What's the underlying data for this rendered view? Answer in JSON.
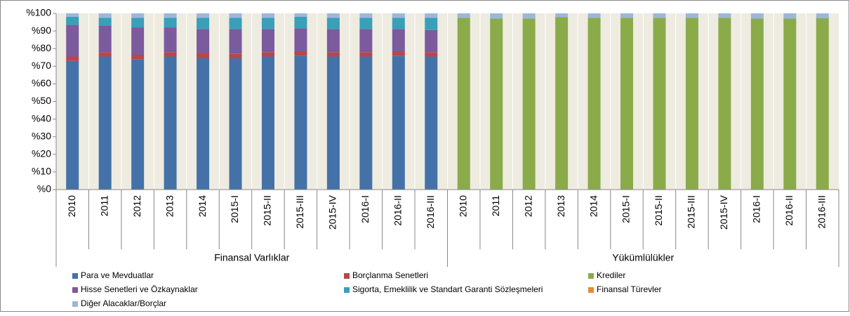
{
  "chart_data": {
    "type": "stacked_bar",
    "groups": [
      {
        "name": "Finansal Varlıklar",
        "categories": [
          "2010",
          "2011",
          "2012",
          "2013",
          "2014",
          "2015-I",
          "2015-II",
          "2015-III",
          "2015-IV",
          "2016-I",
          "2016-II",
          "2016-III"
        ]
      },
      {
        "name": "Yükümlülükler",
        "categories": [
          "2010",
          "2011",
          "2012",
          "2013",
          "2014",
          "2015-I",
          "2015-II",
          "2015-III",
          "2015-IV",
          "2016-I",
          "2016-II",
          "2016-III"
        ]
      }
    ],
    "series": [
      {
        "name": "Para ve Mevduatlar",
        "color": "#4472a8",
        "values": [
          73,
          75.5,
          74,
          75.5,
          74.5,
          74.5,
          75.5,
          76,
          75.5,
          75.5,
          76,
          75.5,
          0,
          0,
          0,
          0,
          0,
          0,
          0,
          0,
          0,
          0,
          0,
          0
        ]
      },
      {
        "name": "Borçlanma Senetleri",
        "color": "#b8474a",
        "values": [
          2.5,
          2.5,
          2.5,
          2.5,
          3,
          2.5,
          2.5,
          2.5,
          2.5,
          2.5,
          2.5,
          2.5,
          0,
          0,
          0,
          0,
          0,
          0,
          0,
          0,
          0,
          0,
          0,
          0
        ]
      },
      {
        "name": "Krediler",
        "color": "#8bab4a",
        "values": [
          0,
          0,
          0,
          0,
          0,
          0,
          0,
          0,
          0,
          0,
          0,
          0,
          97.5,
          97,
          97,
          97.8,
          97.5,
          97.5,
          97.5,
          97.5,
          97.5,
          97,
          97,
          97.2
        ]
      },
      {
        "name": "Hisse Senetleri ve Özkaynaklar",
        "color": "#7b5a9e",
        "values": [
          18,
          15,
          15.5,
          14,
          13.5,
          14,
          13,
          13,
          13,
          13,
          12.5,
          12.5,
          0,
          0,
          0,
          0,
          0,
          0,
          0,
          0,
          0,
          0,
          0,
          0
        ]
      },
      {
        "name": "Sigorta, Emeklilik ve Standart Garanti Sözleşmeleri",
        "color": "#3a9fb8",
        "values": [
          4.5,
          4.5,
          5.5,
          5.5,
          6.5,
          6.5,
          6.5,
          6.5,
          6.5,
          6.5,
          6.5,
          7,
          0,
          0,
          0,
          0,
          0,
          0,
          0,
          0,
          0,
          0,
          0,
          0
        ]
      },
      {
        "name": "Finansal Türevler",
        "color": "#e88a3a",
        "values": [
          0,
          0,
          0,
          0,
          0,
          0,
          0,
          0,
          0,
          0,
          0,
          0,
          0,
          0,
          0,
          0,
          0,
          0,
          0,
          0,
          0,
          0,
          0,
          0
        ]
      },
      {
        "name": "Diğer Alacaklar/Borçlar",
        "color": "#9db6dc",
        "values": [
          2,
          2.5,
          2.5,
          2.5,
          2.5,
          2.5,
          2.5,
          2,
          2.5,
          2.5,
          2.5,
          2.5,
          2.5,
          3,
          3,
          2.2,
          2.5,
          2.5,
          2.5,
          2.5,
          2.5,
          3,
          3,
          2.8
        ]
      }
    ],
    "ylim": [
      0,
      100
    ],
    "yticks": [
      {
        "value": 0,
        "label": "%0"
      },
      {
        "value": 10,
        "label": "%10"
      },
      {
        "value": 20,
        "label": "%20"
      },
      {
        "value": 30,
        "label": "%30"
      },
      {
        "value": 40,
        "label": "%40"
      },
      {
        "value": 50,
        "label": "%50"
      },
      {
        "value": 60,
        "label": "%60"
      },
      {
        "value": 70,
        "label": "%70"
      },
      {
        "value": 80,
        "label": "%80"
      },
      {
        "value": 90,
        "label": "%90"
      },
      {
        "value": 100,
        "label": "%100"
      }
    ],
    "plot_background": "#eeebe0"
  }
}
